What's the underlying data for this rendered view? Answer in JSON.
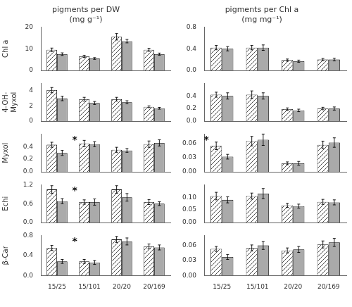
{
  "chart_data": [
    {
      "type": "bar",
      "title": "pigments per DW\n(mg g⁻¹)",
      "ylabel": "Chl a",
      "categories": [
        "15/25",
        "15/101",
        "20/20",
        "20/169"
      ],
      "tick_labels": "y",
      "series": [
        {
          "color": "#ffffff",
          "values": [
            9.5,
            6.5,
            15.5,
            9.5
          ],
          "errors": [
            0.8,
            0.5,
            1.5,
            0.7
          ]
        },
        {
          "color": "#aaaaaa",
          "values": [
            7.5,
            5.5,
            13.5,
            7.5
          ],
          "errors": [
            0.6,
            0.4,
            0.8,
            0.5
          ]
        }
      ],
      "ylim": [
        0,
        20
      ],
      "yticks": [
        0,
        10,
        20
      ],
      "grid": false
    },
    {
      "type": "bar",
      "title": "pigments per Chl a\n(mg mg⁻¹)",
      "categories": [
        "15/25",
        "15/101",
        "20/20",
        "20/169"
      ],
      "tick_labels": "y",
      "series": [
        {
          "color": "#ffffff",
          "values": [
            0.42,
            0.42,
            0.19,
            0.2
          ],
          "errors": [
            0.04,
            0.04,
            0.02,
            0.02
          ]
        },
        {
          "color": "#aaaaaa",
          "values": [
            0.4,
            0.42,
            0.17,
            0.2
          ],
          "errors": [
            0.04,
            0.05,
            0.02,
            0.025
          ]
        }
      ],
      "ylim": [
        0.0,
        0.8
      ],
      "yticks": [
        {
          "value": 0,
          "label": "0.0"
        },
        0.4,
        0.8
      ],
      "grid": false
    },
    {
      "type": "bar",
      "ylabel": "4-OH-\nMyxol",
      "categories": [
        "15/25",
        "15/101",
        "20/20",
        "20/169"
      ],
      "tick_labels": "y",
      "series": [
        {
          "color": "#ffffff",
          "values": [
            4.1,
            2.9,
            2.9,
            1.9
          ],
          "errors": [
            0.35,
            0.25,
            0.25,
            0.12
          ]
        },
        {
          "color": "#aaaaaa",
          "values": [
            3.0,
            2.4,
            2.5,
            1.7
          ],
          "errors": [
            0.3,
            0.2,
            0.2,
            0.12
          ]
        }
      ],
      "ylim": [
        0,
        5
      ],
      "yticks": [
        0,
        2,
        4
      ],
      "grid": false
    },
    {
      "type": "bar",
      "categories": [
        "15/25",
        "15/101",
        "20/20",
        "20/169"
      ],
      "tick_labels": "y",
      "series": [
        {
          "color": "#ffffff",
          "values": [
            0.42,
            0.42,
            0.19,
            0.2
          ],
          "errors": [
            0.04,
            0.06,
            0.02,
            0.02
          ]
        },
        {
          "color": "#aaaaaa",
          "values": [
            0.4,
            0.4,
            0.17,
            0.2
          ],
          "errors": [
            0.05,
            0.05,
            0.02,
            0.025
          ]
        }
      ],
      "ylim": [
        0.0,
        0.6
      ],
      "yticks": [
        {
          "value": 0,
          "label": "0.0"
        },
        0.2,
        0.4
      ],
      "grid": false
    },
    {
      "type": "bar",
      "ylabel": "Myxol",
      "categories": [
        "15/25",
        "15/101",
        "20/20",
        "20/169"
      ],
      "tick_labels": "y",
      "series": [
        {
          "color": "#ffffff",
          "values": [
            0.43,
            0.45,
            0.35,
            0.44
          ],
          "errors": [
            0.04,
            0.05,
            0.04,
            0.05
          ]
        },
        {
          "color": "#aaaaaa",
          "values": [
            0.3,
            0.44,
            0.34,
            0.46
          ],
          "errors": [
            0.04,
            0.04,
            0.03,
            0.05
          ]
        }
      ],
      "ylim": [
        0.0,
        0.6
      ],
      "yticks": [
        {
          "value": 0,
          "label": "0.0"
        },
        0.2,
        0.4
      ],
      "grid": false,
      "annotations": [
        {
          "text": "*",
          "x": "15/101"
        }
      ]
    },
    {
      "type": "bar",
      "categories": [
        "15/25",
        "15/101",
        "20/20",
        "20/169"
      ],
      "tick_labels": "y",
      "series": [
        {
          "color": "#ffffff",
          "values": [
            0.055,
            0.065,
            0.018,
            0.057
          ],
          "errors": [
            0.008,
            0.01,
            0.003,
            0.008
          ]
        },
        {
          "color": "#aaaaaa",
          "values": [
            0.032,
            0.068,
            0.018,
            0.062
          ],
          "errors": [
            0.005,
            0.012,
            0.004,
            0.01
          ]
        }
      ],
      "ylim": [
        0.0,
        0.08
      ],
      "yticks": [
        {
          "value": 0,
          "label": "0.00"
        },
        0.03,
        0.06
      ],
      "grid": false,
      "annotations": [
        {
          "text": "*",
          "x": "15/25"
        }
      ]
    },
    {
      "type": "bar",
      "ylabel": "Echi",
      "categories": [
        "15/25",
        "15/101",
        "20/20",
        "20/169"
      ],
      "tick_labels": "y",
      "series": [
        {
          "color": "#ffffff",
          "values": [
            1.05,
            0.65,
            1.05,
            0.65
          ],
          "errors": [
            0.12,
            0.07,
            0.12,
            0.08
          ]
        },
        {
          "color": "#aaaaaa",
          "values": [
            0.68,
            0.65,
            0.8,
            0.6
          ],
          "errors": [
            0.08,
            0.1,
            0.12,
            0.06
          ]
        }
      ],
      "ylim": [
        0.0,
        1.2
      ],
      "yticks": [
        {
          "value": 0,
          "label": "0.0"
        },
        0.6,
        1.2
      ],
      "grid": false,
      "annotations": [
        {
          "text": "*",
          "x": "15/101"
        }
      ]
    },
    {
      "type": "bar",
      "categories": [
        "15/25",
        "15/101",
        "20/20",
        "20/169"
      ],
      "tick_labels": "y",
      "series": [
        {
          "color": "#ffffff",
          "values": [
            0.105,
            0.105,
            0.068,
            0.082
          ],
          "errors": [
            0.015,
            0.012,
            0.008,
            0.01
          ]
        },
        {
          "color": "#aaaaaa",
          "values": [
            0.09,
            0.115,
            0.065,
            0.08
          ],
          "errors": [
            0.012,
            0.02,
            0.008,
            0.01
          ]
        }
      ],
      "ylim": [
        0.0,
        0.15
      ],
      "yticks": [
        {
          "value": 0,
          "label": "0.00"
        },
        0.05,
        {
          "value": 0.1,
          "label": "0.10"
        }
      ],
      "grid": false
    },
    {
      "type": "bar",
      "ylabel": "β-Car",
      "categories": [
        "15/25",
        "15/101",
        "20/20",
        "20/169"
      ],
      "series": [
        {
          "color": "#ffffff",
          "values": [
            0.55,
            0.28,
            0.72,
            0.58
          ],
          "errors": [
            0.05,
            0.04,
            0.06,
            0.05
          ]
        },
        {
          "color": "#aaaaaa",
          "values": [
            0.28,
            0.26,
            0.68,
            0.56
          ],
          "errors": [
            0.04,
            0.04,
            0.07,
            0.05
          ]
        }
      ],
      "ylim": [
        0.0,
        0.8
      ],
      "yticks": [
        {
          "value": 0,
          "label": "0.0"
        },
        0.4,
        0.8
      ],
      "grid": false,
      "annotations": [
        {
          "text": "*",
          "x": "15/101"
        }
      ]
    },
    {
      "type": "bar",
      "categories": [
        "15/25",
        "15/101",
        "20/20",
        "20/169"
      ],
      "series": [
        {
          "color": "#ffffff",
          "values": [
            0.053,
            0.055,
            0.05,
            0.062
          ],
          "errors": [
            0.005,
            0.006,
            0.005,
            0.007
          ]
        },
        {
          "color": "#aaaaaa",
          "values": [
            0.037,
            0.06,
            0.052,
            0.066
          ],
          "errors": [
            0.005,
            0.008,
            0.006,
            0.008
          ]
        }
      ],
      "ylim": [
        0.0,
        0.08
      ],
      "yticks": [
        {
          "value": 0,
          "label": "0.00"
        },
        0.03,
        0.06
      ],
      "grid": false
    }
  ]
}
